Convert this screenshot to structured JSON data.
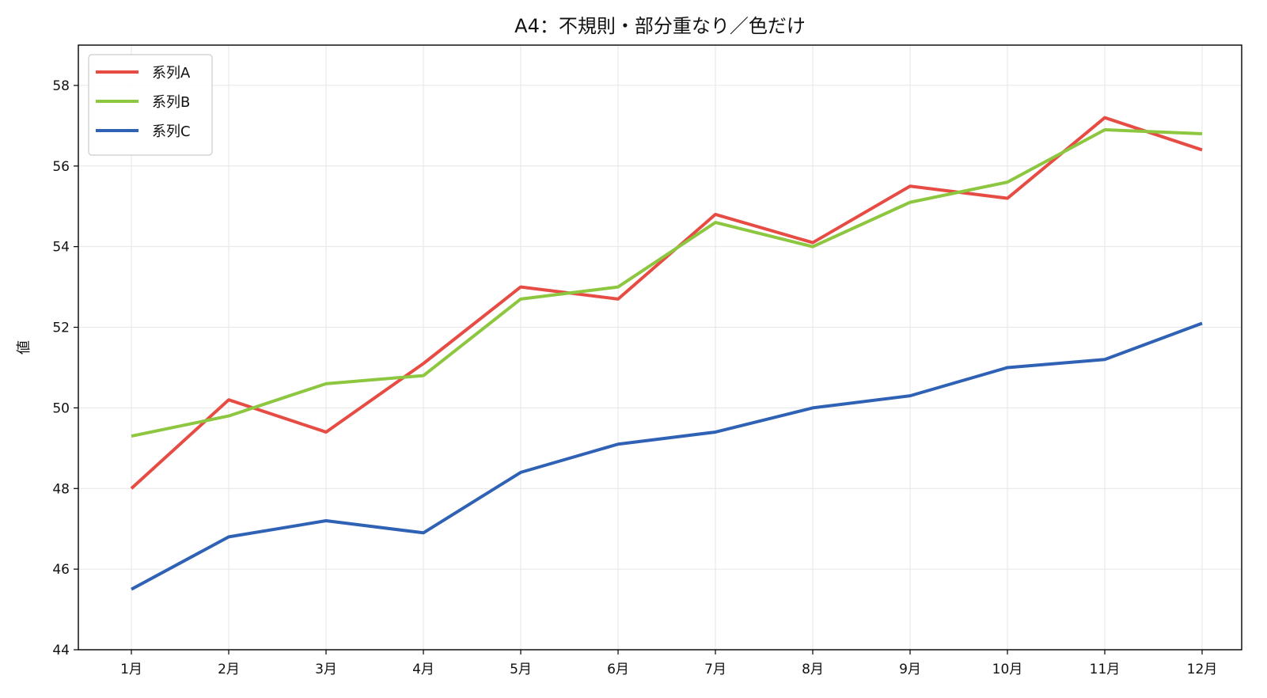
{
  "chart_data": {
    "type": "line",
    "title": "A4：不規則・部分重なり／色だけ",
    "xlabel": "",
    "ylabel": "値",
    "categories": [
      "1月",
      "2月",
      "3月",
      "4月",
      "5月",
      "6月",
      "7月",
      "8月",
      "9月",
      "10月",
      "11月",
      "12月"
    ],
    "ylim": [
      44,
      59
    ],
    "yticks": [
      44,
      46,
      48,
      50,
      52,
      54,
      56,
      58
    ],
    "grid": true,
    "legend_position": "top-left",
    "series": [
      {
        "name": "系列A",
        "color": "#e74c44",
        "values": [
          48.0,
          50.2,
          49.4,
          51.1,
          53.0,
          52.7,
          54.8,
          54.1,
          55.5,
          55.2,
          57.2,
          56.4
        ]
      },
      {
        "name": "系列B",
        "color": "#8dc63f",
        "values": [
          49.3,
          49.8,
          50.6,
          50.8,
          52.7,
          53.0,
          54.6,
          54.0,
          55.1,
          55.6,
          56.9,
          56.8
        ]
      },
      {
        "name": "系列C",
        "color": "#2f62b5",
        "values": [
          45.5,
          46.8,
          47.2,
          46.9,
          48.4,
          49.1,
          49.4,
          50.0,
          50.3,
          51.0,
          51.2,
          52.1
        ]
      }
    ]
  }
}
